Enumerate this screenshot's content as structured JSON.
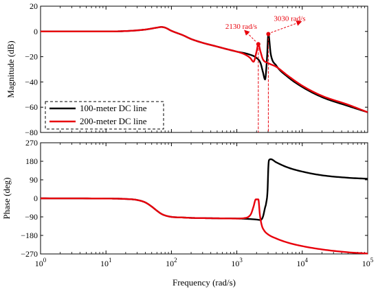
{
  "colors": {
    "line_100m": "#000000",
    "line_200m": "#e8000b",
    "annotation": "#e8000b"
  },
  "legend": {
    "placement": "bottom-left",
    "entries": [
      "100-meter DC line",
      "200-meter DC line"
    ]
  },
  "xlabel": "Frequency  (rad/s)",
  "chart_data": [
    {
      "type": "line",
      "panel": "magnitude",
      "ylabel": "Magnitude (dB)",
      "xscale": "log",
      "xlim": [
        1,
        100000
      ],
      "ylim": [
        -80,
        20
      ],
      "yticks": [
        20,
        0,
        -20,
        -40,
        -60,
        -80
      ],
      "xtick_labels": [
        {
          "base": "10",
          "exp": "0"
        },
        {
          "base": "10",
          "exp": "1"
        },
        {
          "base": "10",
          "exp": "2"
        },
        {
          "base": "10",
          "exp": "3"
        },
        {
          "base": "10",
          "exp": "4"
        },
        {
          "base": "10",
          "exp": "5"
        }
      ],
      "grid": false,
      "series": [
        {
          "name": "100-meter DC line",
          "x": [
            1,
            10,
            20,
            40,
            60,
            70,
            80,
            100,
            150,
            200,
            300,
            500,
            700,
            1000,
            1500,
            2000,
            2300,
            2500,
            2700,
            2900,
            3030,
            3300,
            4000,
            6000,
            10000,
            20000,
            50000,
            100000
          ],
          "y": [
            0,
            0,
            0.3,
            1.5,
            3,
            3.5,
            3,
            0.5,
            -3,
            -6,
            -9,
            -12,
            -14,
            -16,
            -18,
            -21,
            -25,
            -32,
            -38,
            -20,
            -2,
            -18,
            -27,
            -36,
            -44,
            -52,
            -59,
            -64
          ]
        },
        {
          "name": "200-meter DC line",
          "x": [
            1,
            10,
            20,
            40,
            60,
            70,
            80,
            100,
            150,
            200,
            300,
            500,
            700,
            1000,
            1300,
            1600,
            1800,
            2000,
            2130,
            2300,
            2500,
            3000,
            4000,
            6000,
            10000,
            20000,
            50000,
            100000
          ],
          "y": [
            0,
            0,
            0.3,
            1.5,
            3,
            3.5,
            3,
            0.5,
            -3,
            -6,
            -9,
            -12,
            -14,
            -16,
            -18,
            -21,
            -24,
            -16,
            -10,
            -16,
            -22,
            -25,
            -28,
            -35,
            -43,
            -51,
            -58,
            -64
          ]
        }
      ],
      "annotations": [
        {
          "text": "2130 rad/s",
          "x": 2130,
          "y": -10
        },
        {
          "text": "3030 rad/s",
          "x": 3030,
          "y": -2
        }
      ]
    },
    {
      "type": "line",
      "panel": "phase",
      "ylabel": "Phase (deg)",
      "xscale": "log",
      "xlim": [
        1,
        100000
      ],
      "ylim": [
        -270,
        270
      ],
      "yticks": [
        270,
        180,
        90,
        0,
        -90,
        -180,
        -270
      ],
      "xtick_labels": [
        {
          "base": "10",
          "exp": "0"
        },
        {
          "base": "10",
          "exp": "1"
        },
        {
          "base": "10",
          "exp": "2"
        },
        {
          "base": "10",
          "exp": "3"
        },
        {
          "base": "10",
          "exp": "4"
        },
        {
          "base": "10",
          "exp": "5"
        }
      ],
      "grid": false,
      "series": [
        {
          "name": "100-meter DC line",
          "x": [
            1,
            10,
            20,
            30,
            40,
            50,
            60,
            70,
            80,
            100,
            150,
            200,
            300,
            500,
            1000,
            1500,
            2000,
            2300,
            2500,
            2700,
            2800,
            2950,
            3030,
            3100,
            3300,
            4000,
            6000,
            10000,
            20000,
            50000,
            100000
          ],
          "y": [
            0,
            -1,
            -3,
            -8,
            -20,
            -40,
            -60,
            -75,
            -83,
            -90,
            -93,
            -95,
            -96,
            -97,
            -98,
            -100,
            -103,
            -105,
            -90,
            -45,
            -25,
            40,
            150,
            185,
            190,
            175,
            150,
            130,
            112,
            100,
            95
          ]
        },
        {
          "name": "200-meter DC line",
          "x": [
            1,
            10,
            20,
            30,
            40,
            50,
            60,
            70,
            80,
            100,
            150,
            200,
            300,
            500,
            1000,
            1300,
            1500,
            1650,
            1800,
            1950,
            2130,
            2250,
            2400,
            2600,
            3000,
            4000,
            6000,
            10000,
            20000,
            50000,
            100000
          ],
          "y": [
            0,
            -1,
            -3,
            -8,
            -20,
            -40,
            -60,
            -75,
            -83,
            -90,
            -93,
            -95,
            -96,
            -97,
            -98,
            -96,
            -90,
            -75,
            -40,
            -5,
            -5,
            -80,
            -130,
            -155,
            -175,
            -195,
            -215,
            -232,
            -248,
            -262,
            -268
          ]
        }
      ]
    }
  ]
}
